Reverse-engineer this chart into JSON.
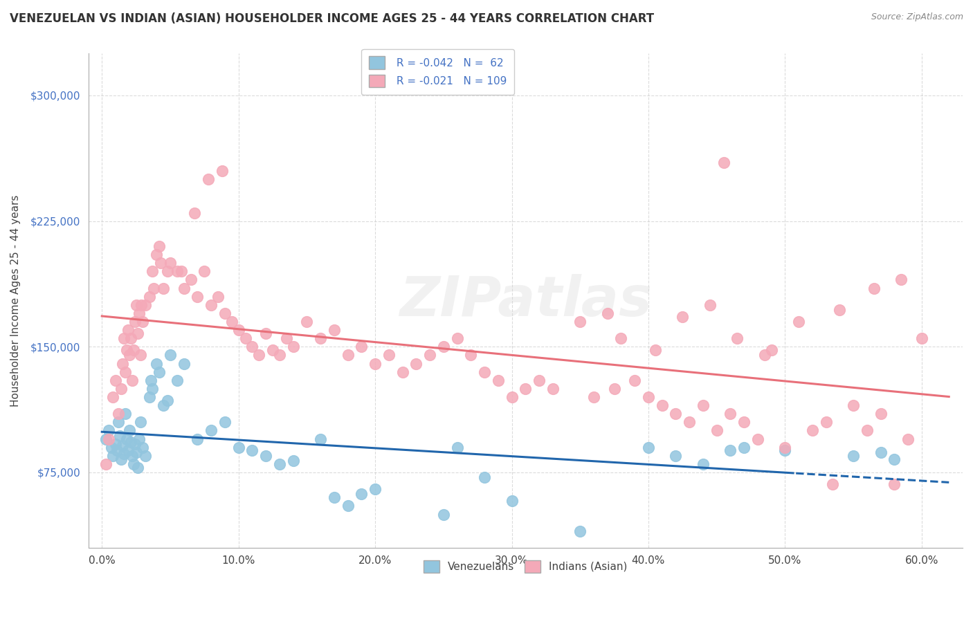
{
  "title": "VENEZUELAN VS INDIAN (ASIAN) HOUSEHOLDER INCOME AGES 25 - 44 YEARS CORRELATION CHART",
  "source": "Source: ZipAtlas.com",
  "ylabel": "Householder Income Ages 25 - 44 years",
  "xlabel_ticks": [
    "0.0%",
    "10.0%",
    "20.0%",
    "30.0%",
    "40.0%",
    "50.0%",
    "60.0%"
  ],
  "xlabel_vals": [
    0.0,
    10.0,
    20.0,
    30.0,
    40.0,
    50.0,
    60.0
  ],
  "yticks": [
    75000,
    150000,
    225000,
    300000
  ],
  "ytick_labels": [
    "$75,000",
    "$150,000",
    "$225,000",
    "$300,000"
  ],
  "ylim": [
    30000,
    325000
  ],
  "xlim": [
    -1.0,
    63.0
  ],
  "venezuelan_color": "#92C5DE",
  "indian_color": "#F4A9B8",
  "venezuelan_line_color": "#2166AC",
  "indian_line_color": "#E8707A",
  "R_venezuelan": -0.042,
  "N_venezuelan": 62,
  "R_indian": -0.021,
  "N_indian": 109,
  "watermark": "ZIPatlas",
  "background_color": "#FFFFFF",
  "grid_color": "#CCCCCC",
  "venezuelan_scatter_x": [
    0.3,
    0.5,
    0.7,
    0.8,
    1.0,
    1.1,
    1.2,
    1.3,
    1.4,
    1.5,
    1.6,
    1.7,
    1.8,
    1.9,
    2.0,
    2.1,
    2.2,
    2.3,
    2.4,
    2.5,
    2.6,
    2.7,
    2.8,
    3.0,
    3.2,
    3.5,
    3.6,
    3.7,
    4.0,
    4.2,
    4.5,
    4.8,
    5.0,
    5.5,
    6.0,
    7.0,
    8.0,
    9.0,
    10.0,
    11.0,
    12.0,
    13.0,
    14.0,
    16.0,
    17.0,
    18.0,
    19.0,
    20.0,
    25.0,
    26.0,
    28.0,
    30.0,
    35.0,
    40.0,
    42.0,
    44.0,
    46.0,
    47.0,
    50.0,
    55.0,
    57.0,
    58.0
  ],
  "venezuelan_scatter_y": [
    95000,
    100000,
    90000,
    85000,
    92000,
    88000,
    105000,
    97000,
    83000,
    91000,
    86000,
    110000,
    95000,
    88000,
    100000,
    93000,
    85000,
    80000,
    92000,
    87000,
    78000,
    95000,
    105000,
    90000,
    85000,
    120000,
    130000,
    125000,
    140000,
    135000,
    115000,
    118000,
    145000,
    130000,
    140000,
    95000,
    100000,
    105000,
    90000,
    88000,
    85000,
    80000,
    82000,
    95000,
    60000,
    55000,
    62000,
    65000,
    50000,
    90000,
    72000,
    58000,
    40000,
    90000,
    85000,
    80000,
    88000,
    90000,
    88000,
    85000,
    87000,
    83000
  ],
  "indian_scatter_x": [
    0.3,
    0.5,
    0.8,
    1.0,
    1.2,
    1.4,
    1.5,
    1.6,
    1.7,
    1.8,
    1.9,
    2.0,
    2.1,
    2.2,
    2.3,
    2.4,
    2.5,
    2.6,
    2.7,
    2.8,
    3.0,
    3.2,
    3.5,
    3.7,
    4.0,
    4.2,
    4.5,
    4.8,
    5.0,
    5.5,
    6.0,
    6.5,
    7.0,
    7.5,
    8.0,
    8.5,
    9.0,
    9.5,
    10.0,
    10.5,
    11.0,
    11.5,
    12.0,
    12.5,
    13.0,
    13.5,
    14.0,
    15.0,
    16.0,
    17.0,
    18.0,
    19.0,
    20.0,
    21.0,
    22.0,
    23.0,
    24.0,
    25.0,
    26.0,
    27.0,
    28.0,
    29.0,
    30.0,
    31.0,
    32.0,
    33.0,
    35.0,
    37.0,
    38.0,
    40.0,
    41.0,
    42.0,
    43.0,
    44.0,
    45.0,
    46.0,
    47.0,
    48.0,
    50.0,
    52.0,
    53.0,
    55.0,
    56.0,
    57.0,
    58.0,
    59.0,
    60.0,
    36.0,
    37.5,
    39.0,
    40.5,
    42.5,
    44.5,
    46.5,
    48.5,
    51.0,
    54.0,
    56.5,
    58.5,
    2.9,
    3.8,
    4.3,
    5.8,
    6.8,
    7.8,
    8.8,
    45.5,
    49.0,
    53.5
  ],
  "indian_scatter_y": [
    80000,
    95000,
    120000,
    130000,
    110000,
    125000,
    140000,
    155000,
    135000,
    148000,
    160000,
    145000,
    155000,
    130000,
    148000,
    165000,
    175000,
    158000,
    170000,
    145000,
    165000,
    175000,
    180000,
    195000,
    205000,
    210000,
    185000,
    195000,
    200000,
    195000,
    185000,
    190000,
    180000,
    195000,
    175000,
    180000,
    170000,
    165000,
    160000,
    155000,
    150000,
    145000,
    158000,
    148000,
    145000,
    155000,
    150000,
    165000,
    155000,
    160000,
    145000,
    150000,
    140000,
    145000,
    135000,
    140000,
    145000,
    150000,
    155000,
    145000,
    135000,
    130000,
    120000,
    125000,
    130000,
    125000,
    165000,
    170000,
    155000,
    120000,
    115000,
    110000,
    105000,
    115000,
    100000,
    110000,
    105000,
    95000,
    90000,
    100000,
    105000,
    115000,
    100000,
    110000,
    68000,
    95000,
    155000,
    120000,
    125000,
    130000,
    148000,
    168000,
    175000,
    155000,
    145000,
    165000,
    172000,
    185000,
    190000,
    175000,
    185000,
    200000,
    195000,
    230000,
    250000,
    255000,
    260000,
    148000,
    68000
  ]
}
